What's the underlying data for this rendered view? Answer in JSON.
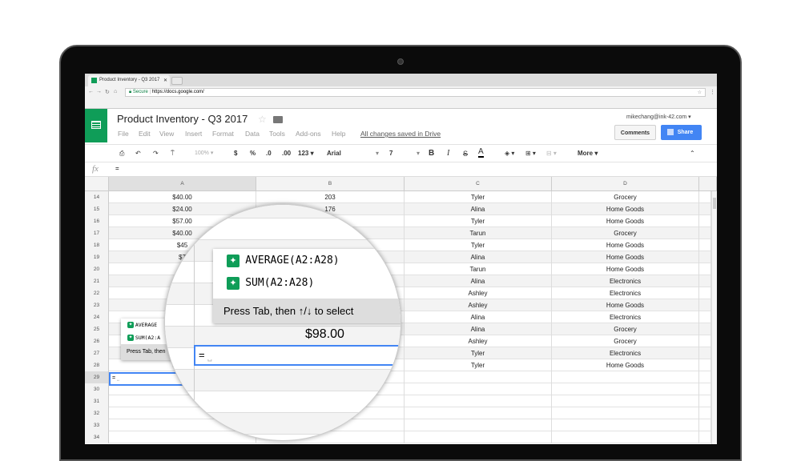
{
  "browser": {
    "tab_title": "Product Inventory - Q3 2017",
    "secure_label": "Secure",
    "url": "https://docs.google.com/"
  },
  "doc": {
    "title": "Product Inventory - Q3 2017",
    "menu": [
      "File",
      "Edit",
      "View",
      "Insert",
      "Format",
      "Data",
      "Tools",
      "Add-ons",
      "Help"
    ],
    "saved_status": "All changes saved in Drive",
    "user_email": "mikechang@ink-42.com",
    "comments_label": "Comments",
    "share_label": "Share",
    "accent": "#0f9d58",
    "share_color": "#4285f4"
  },
  "toolbar": {
    "zoom": "100%",
    "currency": "$",
    "percent": "%",
    "dec_less": ".0",
    "dec_more": ".00",
    "format_more": "123",
    "font": "Arial",
    "font_size": "7",
    "bold": "B",
    "italic": "I",
    "strike": "S",
    "text_color": "A",
    "more": "More"
  },
  "formula_bar": {
    "fx": "fx",
    "value": "="
  },
  "columns": [
    "A",
    "B",
    "C",
    "D"
  ],
  "rows": [
    {
      "n": "14",
      "a": "$40.00",
      "b": "203",
      "c": "Tyler",
      "d": "Grocery"
    },
    {
      "n": "15",
      "a": "$24.00",
      "b": "176",
      "c": "Alina",
      "d": "Home Goods"
    },
    {
      "n": "16",
      "a": "$57.00",
      "b": "203",
      "c": "Tyler",
      "d": "Home Goods"
    },
    {
      "n": "17",
      "a": "$40.00",
      "b": "",
      "c": "Tarun",
      "d": "Grocery"
    },
    {
      "n": "18",
      "a": "$45",
      "b": "",
      "c": "Tyler",
      "d": "Home Goods"
    },
    {
      "n": "19",
      "a": "$7",
      "b": "",
      "c": "Alina",
      "d": "Home Goods"
    },
    {
      "n": "20",
      "a": "",
      "b": "",
      "c": "Tarun",
      "d": "Home Goods"
    },
    {
      "n": "21",
      "a": "",
      "b": "",
      "c": "Alina",
      "d": "Electronics"
    },
    {
      "n": "22",
      "a": "",
      "b": "",
      "c": "Ashley",
      "d": "Electronics"
    },
    {
      "n": "23",
      "a": "",
      "b": "",
      "c": "Ashley",
      "d": "Home Goods"
    },
    {
      "n": "24",
      "a": "",
      "b": "",
      "c": "Alina",
      "d": "Electronics"
    },
    {
      "n": "25",
      "a": "",
      "b": "",
      "c": "Alina",
      "d": "Grocery"
    },
    {
      "n": "26",
      "a": "",
      "b": "",
      "c": "Ashley",
      "d": "Grocery"
    },
    {
      "n": "27",
      "a": "",
      "b": "",
      "c": "Tyler",
      "d": "Electronics"
    },
    {
      "n": "28",
      "a": "$98.00",
      "b": "",
      "c": "Tyler",
      "d": "Home Goods"
    },
    {
      "n": "29",
      "a": "",
      "b": "",
      "c": "",
      "d": ""
    },
    {
      "n": "30",
      "a": "",
      "b": "",
      "c": "",
      "d": ""
    },
    {
      "n": "31",
      "a": "",
      "b": "",
      "c": "",
      "d": ""
    },
    {
      "n": "32",
      "a": "",
      "b": "",
      "c": "",
      "d": ""
    },
    {
      "n": "33",
      "a": "",
      "b": "",
      "c": "",
      "d": ""
    },
    {
      "n": "34",
      "a": "",
      "b": "",
      "c": "",
      "d": ""
    }
  ],
  "autocomplete": {
    "items": [
      "AVERAGE(A2:A28)",
      "SUM(A2:A28)"
    ],
    "hint": "Press Tab, then ↑/↓ to select",
    "small_items": [
      "AVERAGE",
      "SUM(A2:A"
    ],
    "small_hint": "Press Tab, then"
  },
  "editing_cell": {
    "value": "=",
    "cell": "A29"
  },
  "magnifier": {
    "value_above": "$98.00"
  }
}
